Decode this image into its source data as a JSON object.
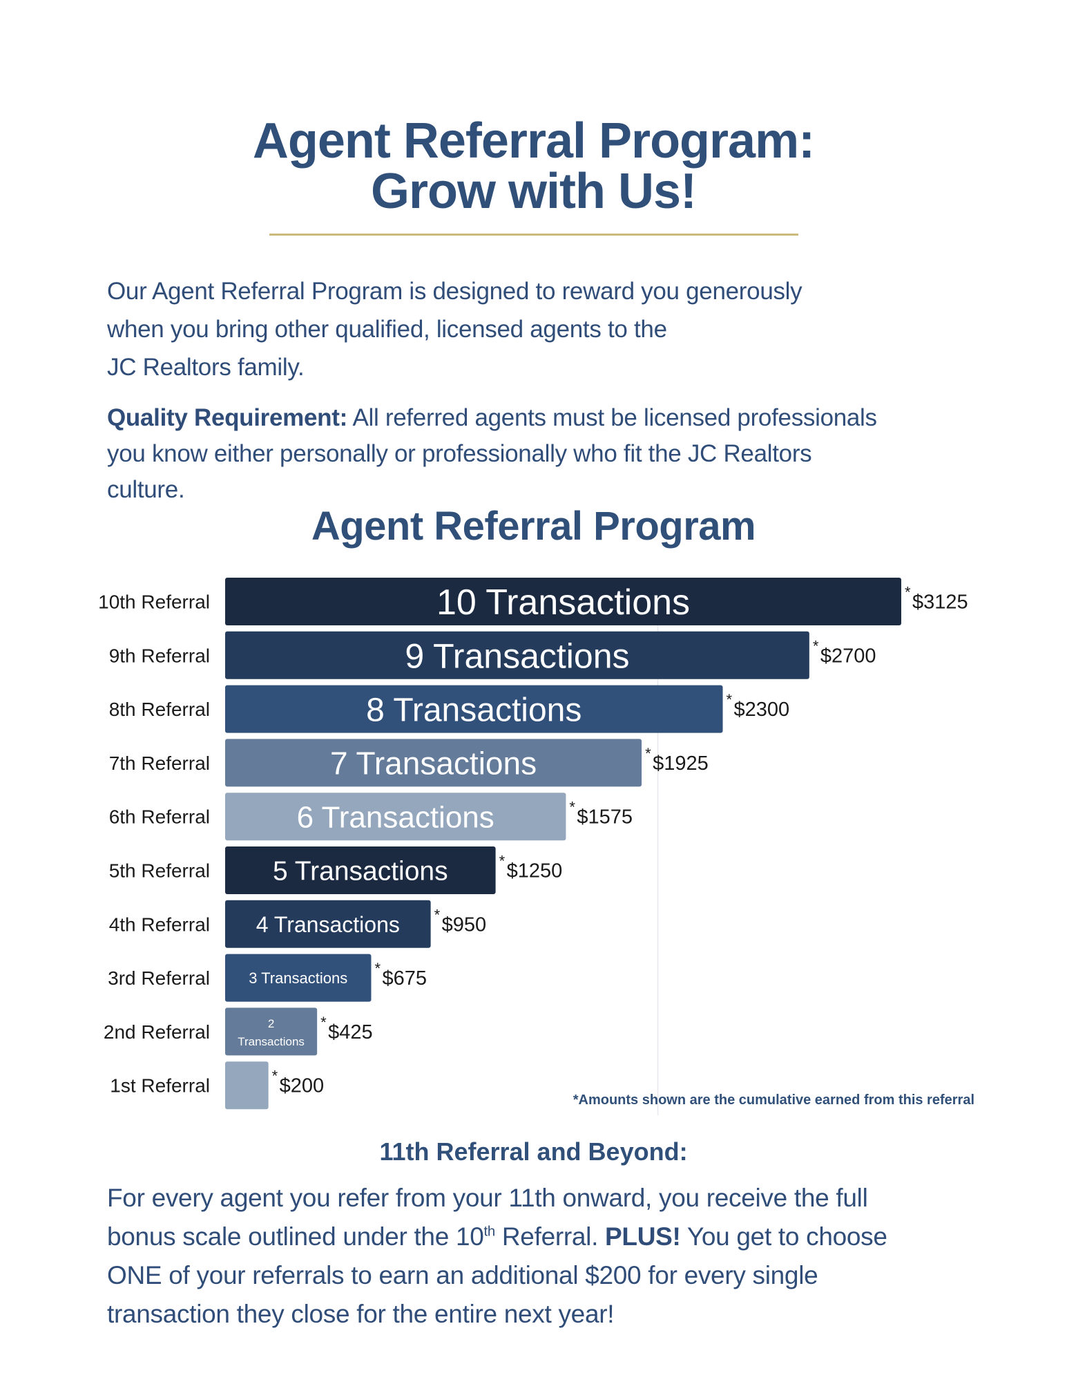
{
  "header": {
    "title_line1": "Agent Referral Program:",
    "title_line2": "Grow with Us!"
  },
  "intro": {
    "lines": [
      "Our Agent Referral Program is designed to reward you generously",
      "when you bring other qualified, licensed agents to the",
      "JC Realtors family."
    ]
  },
  "quality": {
    "label": "Quality Requirement:",
    "line1_rest": " All referred agents must be licensed professionals",
    "lines": [
      "you know either personally or professionally who fit the JC Realtors",
      "culture."
    ]
  },
  "chart_data": {
    "type": "bar",
    "orientation": "horizontal",
    "title": "Agent Referral Program",
    "categories": [
      "10th Referral",
      "9th Referral",
      "8th Referral",
      "7th Referral",
      "6th Referral",
      "5th Referral",
      "4th Referral",
      "3rd Referral",
      "2nd Referral",
      "1st Referral"
    ],
    "bar_labels": [
      "10 Transactions",
      "9 Transactions",
      "8 Transactions",
      "7 Transactions",
      "6 Transactions",
      "5 Transactions",
      "4 Transactions",
      "3 Transactions",
      "2 Transactions",
      ""
    ],
    "values": [
      3125,
      2700,
      2300,
      1925,
      1575,
      1250,
      950,
      675,
      425,
      200
    ],
    "value_labels": [
      "$3125",
      "$2700",
      "$2300",
      "$1925",
      "$1575",
      "$1250",
      "$950",
      "$675",
      "$425",
      "$200"
    ],
    "value_prefix": "*",
    "xlim": [
      0,
      3125
    ],
    "gridlines": [
      2000
    ],
    "colors": [
      "#1b2a40",
      "#243b5c",
      "#31517b",
      "#647b9a",
      "#95a7bc",
      "#1b2a40",
      "#243b5c",
      "#31517b",
      "#647b9a",
      "#95a7bc"
    ],
    "footnote": "*Amounts shown are the cumulative earned from this referral"
  },
  "beyond": {
    "heading": "11th Referral and Beyond:",
    "line1": "For every agent you refer from your 11th onward, you receive the full",
    "line2_a": "bonus scale outlined under the 10",
    "line2_sup": "th",
    "line2_b": " Referral. ",
    "line2_bold": "PLUS!",
    "line2_c": " You get to choose",
    "line3": "ONE of your referrals to earn an additional $200 for every single",
    "line4": "transaction they close for the entire next year!"
  }
}
